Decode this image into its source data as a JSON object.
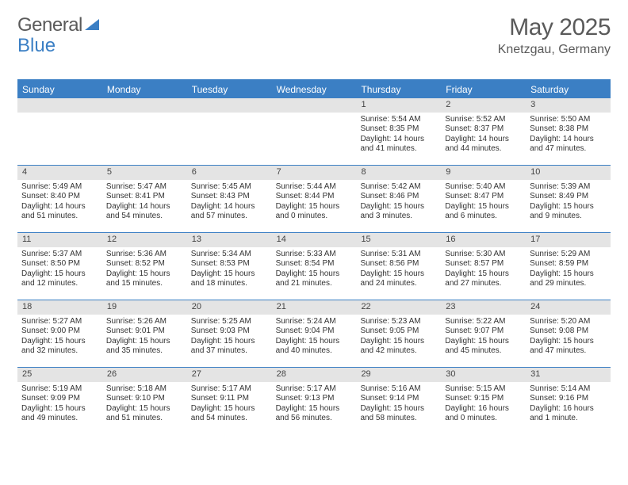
{
  "logo": {
    "part1": "General",
    "part2": "Blue"
  },
  "title": "May 2025",
  "location": "Knetzgau, Germany",
  "weekdays": [
    "Sunday",
    "Monday",
    "Tuesday",
    "Wednesday",
    "Thursday",
    "Friday",
    "Saturday"
  ],
  "colors": {
    "accent": "#3b7fc4",
    "header_text": "#5a5a5a",
    "daynum_bg": "#e4e4e4",
    "body_text": "#333333",
    "background": "#ffffff"
  },
  "weeks": [
    [
      {
        "n": "",
        "sunrise": "",
        "sunset": "",
        "daylight1": "",
        "daylight2": ""
      },
      {
        "n": "",
        "sunrise": "",
        "sunset": "",
        "daylight1": "",
        "daylight2": ""
      },
      {
        "n": "",
        "sunrise": "",
        "sunset": "",
        "daylight1": "",
        "daylight2": ""
      },
      {
        "n": "",
        "sunrise": "",
        "sunset": "",
        "daylight1": "",
        "daylight2": ""
      },
      {
        "n": "1",
        "sunrise": "Sunrise: 5:54 AM",
        "sunset": "Sunset: 8:35 PM",
        "daylight1": "Daylight: 14 hours",
        "daylight2": "and 41 minutes."
      },
      {
        "n": "2",
        "sunrise": "Sunrise: 5:52 AM",
        "sunset": "Sunset: 8:37 PM",
        "daylight1": "Daylight: 14 hours",
        "daylight2": "and 44 minutes."
      },
      {
        "n": "3",
        "sunrise": "Sunrise: 5:50 AM",
        "sunset": "Sunset: 8:38 PM",
        "daylight1": "Daylight: 14 hours",
        "daylight2": "and 47 minutes."
      }
    ],
    [
      {
        "n": "4",
        "sunrise": "Sunrise: 5:49 AM",
        "sunset": "Sunset: 8:40 PM",
        "daylight1": "Daylight: 14 hours",
        "daylight2": "and 51 minutes."
      },
      {
        "n": "5",
        "sunrise": "Sunrise: 5:47 AM",
        "sunset": "Sunset: 8:41 PM",
        "daylight1": "Daylight: 14 hours",
        "daylight2": "and 54 minutes."
      },
      {
        "n": "6",
        "sunrise": "Sunrise: 5:45 AM",
        "sunset": "Sunset: 8:43 PM",
        "daylight1": "Daylight: 14 hours",
        "daylight2": "and 57 minutes."
      },
      {
        "n": "7",
        "sunrise": "Sunrise: 5:44 AM",
        "sunset": "Sunset: 8:44 PM",
        "daylight1": "Daylight: 15 hours",
        "daylight2": "and 0 minutes."
      },
      {
        "n": "8",
        "sunrise": "Sunrise: 5:42 AM",
        "sunset": "Sunset: 8:46 PM",
        "daylight1": "Daylight: 15 hours",
        "daylight2": "and 3 minutes."
      },
      {
        "n": "9",
        "sunrise": "Sunrise: 5:40 AM",
        "sunset": "Sunset: 8:47 PM",
        "daylight1": "Daylight: 15 hours",
        "daylight2": "and 6 minutes."
      },
      {
        "n": "10",
        "sunrise": "Sunrise: 5:39 AM",
        "sunset": "Sunset: 8:49 PM",
        "daylight1": "Daylight: 15 hours",
        "daylight2": "and 9 minutes."
      }
    ],
    [
      {
        "n": "11",
        "sunrise": "Sunrise: 5:37 AM",
        "sunset": "Sunset: 8:50 PM",
        "daylight1": "Daylight: 15 hours",
        "daylight2": "and 12 minutes."
      },
      {
        "n": "12",
        "sunrise": "Sunrise: 5:36 AM",
        "sunset": "Sunset: 8:52 PM",
        "daylight1": "Daylight: 15 hours",
        "daylight2": "and 15 minutes."
      },
      {
        "n": "13",
        "sunrise": "Sunrise: 5:34 AM",
        "sunset": "Sunset: 8:53 PM",
        "daylight1": "Daylight: 15 hours",
        "daylight2": "and 18 minutes."
      },
      {
        "n": "14",
        "sunrise": "Sunrise: 5:33 AM",
        "sunset": "Sunset: 8:54 PM",
        "daylight1": "Daylight: 15 hours",
        "daylight2": "and 21 minutes."
      },
      {
        "n": "15",
        "sunrise": "Sunrise: 5:31 AM",
        "sunset": "Sunset: 8:56 PM",
        "daylight1": "Daylight: 15 hours",
        "daylight2": "and 24 minutes."
      },
      {
        "n": "16",
        "sunrise": "Sunrise: 5:30 AM",
        "sunset": "Sunset: 8:57 PM",
        "daylight1": "Daylight: 15 hours",
        "daylight2": "and 27 minutes."
      },
      {
        "n": "17",
        "sunrise": "Sunrise: 5:29 AM",
        "sunset": "Sunset: 8:59 PM",
        "daylight1": "Daylight: 15 hours",
        "daylight2": "and 29 minutes."
      }
    ],
    [
      {
        "n": "18",
        "sunrise": "Sunrise: 5:27 AM",
        "sunset": "Sunset: 9:00 PM",
        "daylight1": "Daylight: 15 hours",
        "daylight2": "and 32 minutes."
      },
      {
        "n": "19",
        "sunrise": "Sunrise: 5:26 AM",
        "sunset": "Sunset: 9:01 PM",
        "daylight1": "Daylight: 15 hours",
        "daylight2": "and 35 minutes."
      },
      {
        "n": "20",
        "sunrise": "Sunrise: 5:25 AM",
        "sunset": "Sunset: 9:03 PM",
        "daylight1": "Daylight: 15 hours",
        "daylight2": "and 37 minutes."
      },
      {
        "n": "21",
        "sunrise": "Sunrise: 5:24 AM",
        "sunset": "Sunset: 9:04 PM",
        "daylight1": "Daylight: 15 hours",
        "daylight2": "and 40 minutes."
      },
      {
        "n": "22",
        "sunrise": "Sunrise: 5:23 AM",
        "sunset": "Sunset: 9:05 PM",
        "daylight1": "Daylight: 15 hours",
        "daylight2": "and 42 minutes."
      },
      {
        "n": "23",
        "sunrise": "Sunrise: 5:22 AM",
        "sunset": "Sunset: 9:07 PM",
        "daylight1": "Daylight: 15 hours",
        "daylight2": "and 45 minutes."
      },
      {
        "n": "24",
        "sunrise": "Sunrise: 5:20 AM",
        "sunset": "Sunset: 9:08 PM",
        "daylight1": "Daylight: 15 hours",
        "daylight2": "and 47 minutes."
      }
    ],
    [
      {
        "n": "25",
        "sunrise": "Sunrise: 5:19 AM",
        "sunset": "Sunset: 9:09 PM",
        "daylight1": "Daylight: 15 hours",
        "daylight2": "and 49 minutes."
      },
      {
        "n": "26",
        "sunrise": "Sunrise: 5:18 AM",
        "sunset": "Sunset: 9:10 PM",
        "daylight1": "Daylight: 15 hours",
        "daylight2": "and 51 minutes."
      },
      {
        "n": "27",
        "sunrise": "Sunrise: 5:17 AM",
        "sunset": "Sunset: 9:11 PM",
        "daylight1": "Daylight: 15 hours",
        "daylight2": "and 54 minutes."
      },
      {
        "n": "28",
        "sunrise": "Sunrise: 5:17 AM",
        "sunset": "Sunset: 9:13 PM",
        "daylight1": "Daylight: 15 hours",
        "daylight2": "and 56 minutes."
      },
      {
        "n": "29",
        "sunrise": "Sunrise: 5:16 AM",
        "sunset": "Sunset: 9:14 PM",
        "daylight1": "Daylight: 15 hours",
        "daylight2": "and 58 minutes."
      },
      {
        "n": "30",
        "sunrise": "Sunrise: 5:15 AM",
        "sunset": "Sunset: 9:15 PM",
        "daylight1": "Daylight: 16 hours",
        "daylight2": "and 0 minutes."
      },
      {
        "n": "31",
        "sunrise": "Sunrise: 5:14 AM",
        "sunset": "Sunset: 9:16 PM",
        "daylight1": "Daylight: 16 hours",
        "daylight2": "and 1 minute."
      }
    ]
  ]
}
